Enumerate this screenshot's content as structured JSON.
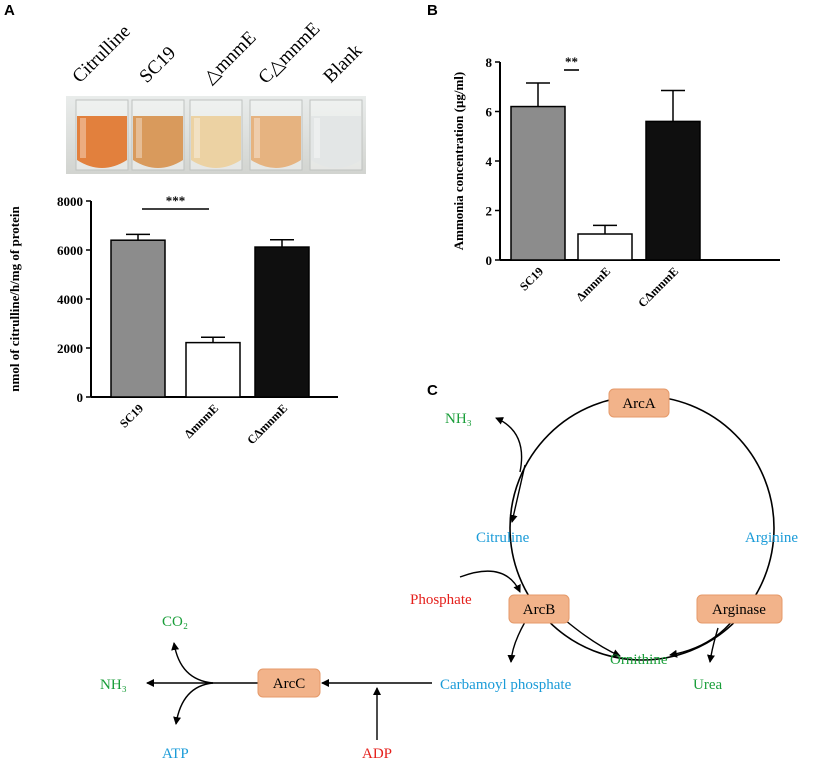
{
  "panels": {
    "a": "A",
    "b": "B",
    "c": "C"
  },
  "tubes": {
    "labels": [
      "Citrulline",
      "SC19",
      "△mnmE",
      "C△mnmE",
      "Blank"
    ],
    "colors": [
      "#e2803d",
      "#d99a5c",
      "#ecd2a3",
      "#e6b380",
      "#e3e6e6"
    ]
  },
  "chart_data": [
    {
      "type": "bar",
      "categories": [
        "SC19",
        "ΔmnmE",
        "CΔmnmE"
      ],
      "values": [
        6400,
        2220,
        6120
      ],
      "errors": [
        240,
        220,
        300
      ],
      "colors": [
        "#8c8c8c",
        "#ffffff",
        "#0f0f0f"
      ],
      "ylabel": "nmol of citrulline/h/mg of protein",
      "ylim": [
        0,
        8000
      ],
      "yticks": [
        0,
        2000,
        4000,
        6000,
        8000
      ],
      "significance": {
        "between": [
          0,
          1
        ],
        "label": "***"
      }
    },
    {
      "type": "bar",
      "categories": [
        "SC19",
        "ΔmnmE",
        "CΔmnmE"
      ],
      "values": [
        6.2,
        1.05,
        5.6
      ],
      "errors": [
        0.95,
        0.35,
        1.25
      ],
      "colors": [
        "#8c8c8c",
        "#ffffff",
        "#0f0f0f"
      ],
      "ylabel": "Ammonia concentration (μg/ml)",
      "ylim": [
        0,
        8
      ],
      "yticks": [
        0,
        2,
        4,
        6,
        8
      ],
      "significance": {
        "between": [
          0,
          1
        ],
        "label": "**"
      }
    }
  ],
  "pathway": {
    "enzymes": {
      "arca": "ArcA",
      "arcb": "ArcB",
      "arcc": "ArcC",
      "arginase": "Arginase"
    },
    "metabolites": {
      "nh3_top": "NH₃",
      "citruline": "Citruline",
      "arginine": "Arginine",
      "phosphate": "Phosphate",
      "ornithine": "Ornithine",
      "urea": "Urea",
      "carbamoyl": "Carbamoyl phosphate",
      "co2": "CO₂",
      "nh3_left": "NH₃",
      "atp": "ATP",
      "adp": "ADP"
    },
    "colors": {
      "enzyme_fill": "#f2b38a",
      "enzyme_stroke": "#e59a6a",
      "green": "#1a9e3a",
      "blue": "#1a9bd8",
      "red": "#e5201c"
    }
  }
}
